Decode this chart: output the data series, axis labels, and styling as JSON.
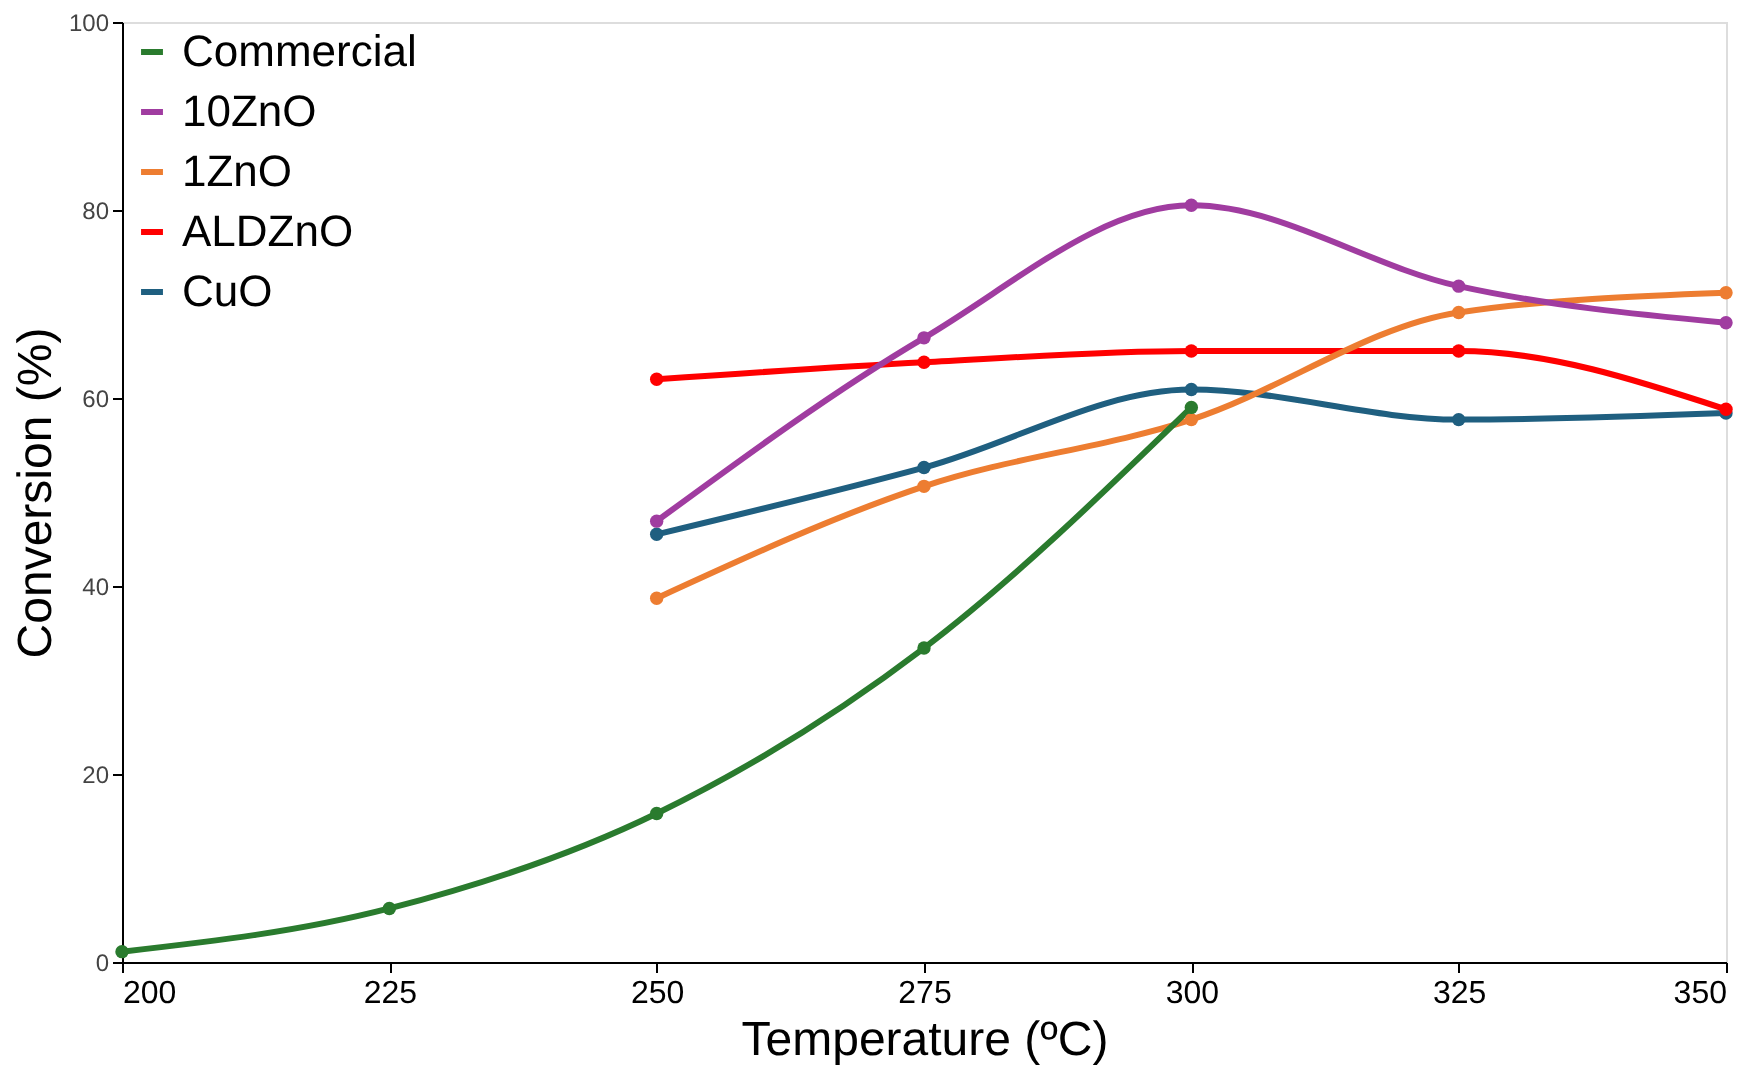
{
  "chart_data": {
    "type": "line",
    "xlabel": "Temperature (ºC)",
    "ylabel": "Conversion (%)",
    "x": [
      200,
      225,
      250,
      275,
      300,
      325,
      350
    ],
    "xlim": [
      200,
      350
    ],
    "xticks": [
      200,
      225,
      250,
      275,
      300,
      325,
      350
    ],
    "ylim": [
      0,
      100
    ],
    "yticks": [
      0,
      20,
      40,
      60,
      80,
      100
    ],
    "grid": false,
    "legend": "top left",
    "marker": "circle",
    "line_style": "solid",
    "series": [
      {
        "name": "Commercial",
        "color": "#2a7b2e",
        "values": [
          1.1,
          5.7,
          15.8,
          33.4,
          59,
          null,
          null
        ]
      },
      {
        "name": "10ZnO",
        "color": "#a03ca0",
        "values": [
          null,
          null,
          46.9,
          66.4,
          80.5,
          71.9,
          68
        ]
      },
      {
        "name": "1ZnO",
        "color": "#ed7d31",
        "values": [
          null,
          null,
          38.7,
          50.6,
          57.7,
          69.1,
          71.2
        ]
      },
      {
        "name": "ALDZnO",
        "color": "#ff0000",
        "values": [
          null,
          null,
          62,
          63.8,
          65,
          65,
          58.8
        ]
      },
      {
        "name": "CuO",
        "color": "#1f5f80",
        "values": [
          null,
          null,
          45.5,
          52.6,
          60.9,
          57.7,
          58.4
        ]
      }
    ]
  }
}
